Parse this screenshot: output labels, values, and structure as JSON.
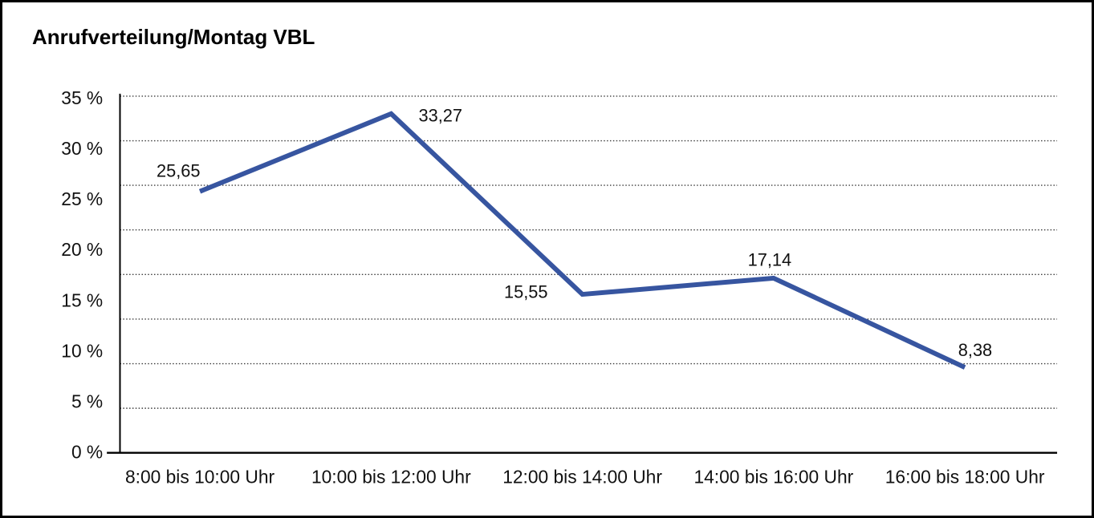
{
  "title": "Anrufverteilung/Montag VBL",
  "chart_data": {
    "type": "line",
    "title": "Anrufverteilung/Montag VBL",
    "categories": [
      "8:00 bis 10:00 Uhr",
      "10:00 bis 12:00 Uhr",
      "12:00 bis 14:00 Uhr",
      "14:00 bis 16:00 Uhr",
      "16:00 bis 18:00 Uhr"
    ],
    "values": [
      25.65,
      33.27,
      15.55,
      17.14,
      8.38
    ],
    "value_labels": [
      "25,65",
      "33,27",
      "15,55",
      "17,14",
      "8,38"
    ],
    "yticks": [
      35,
      30,
      25,
      20,
      15,
      10,
      5,
      0
    ],
    "ytick_labels": [
      "35 %",
      "30 %",
      "25 %",
      "20 %",
      "15 %",
      "10 %",
      "5 %",
      "0 %"
    ],
    "ylim": [
      0,
      35
    ],
    "xlabel": "",
    "ylabel": "",
    "legend": "none",
    "grid": "horizontal-dotted",
    "grid_divisions": 8,
    "line_color": "#3755A0",
    "grid_color": "#3c3c3c",
    "axis_color": "#000000",
    "text_color": "#111111"
  }
}
